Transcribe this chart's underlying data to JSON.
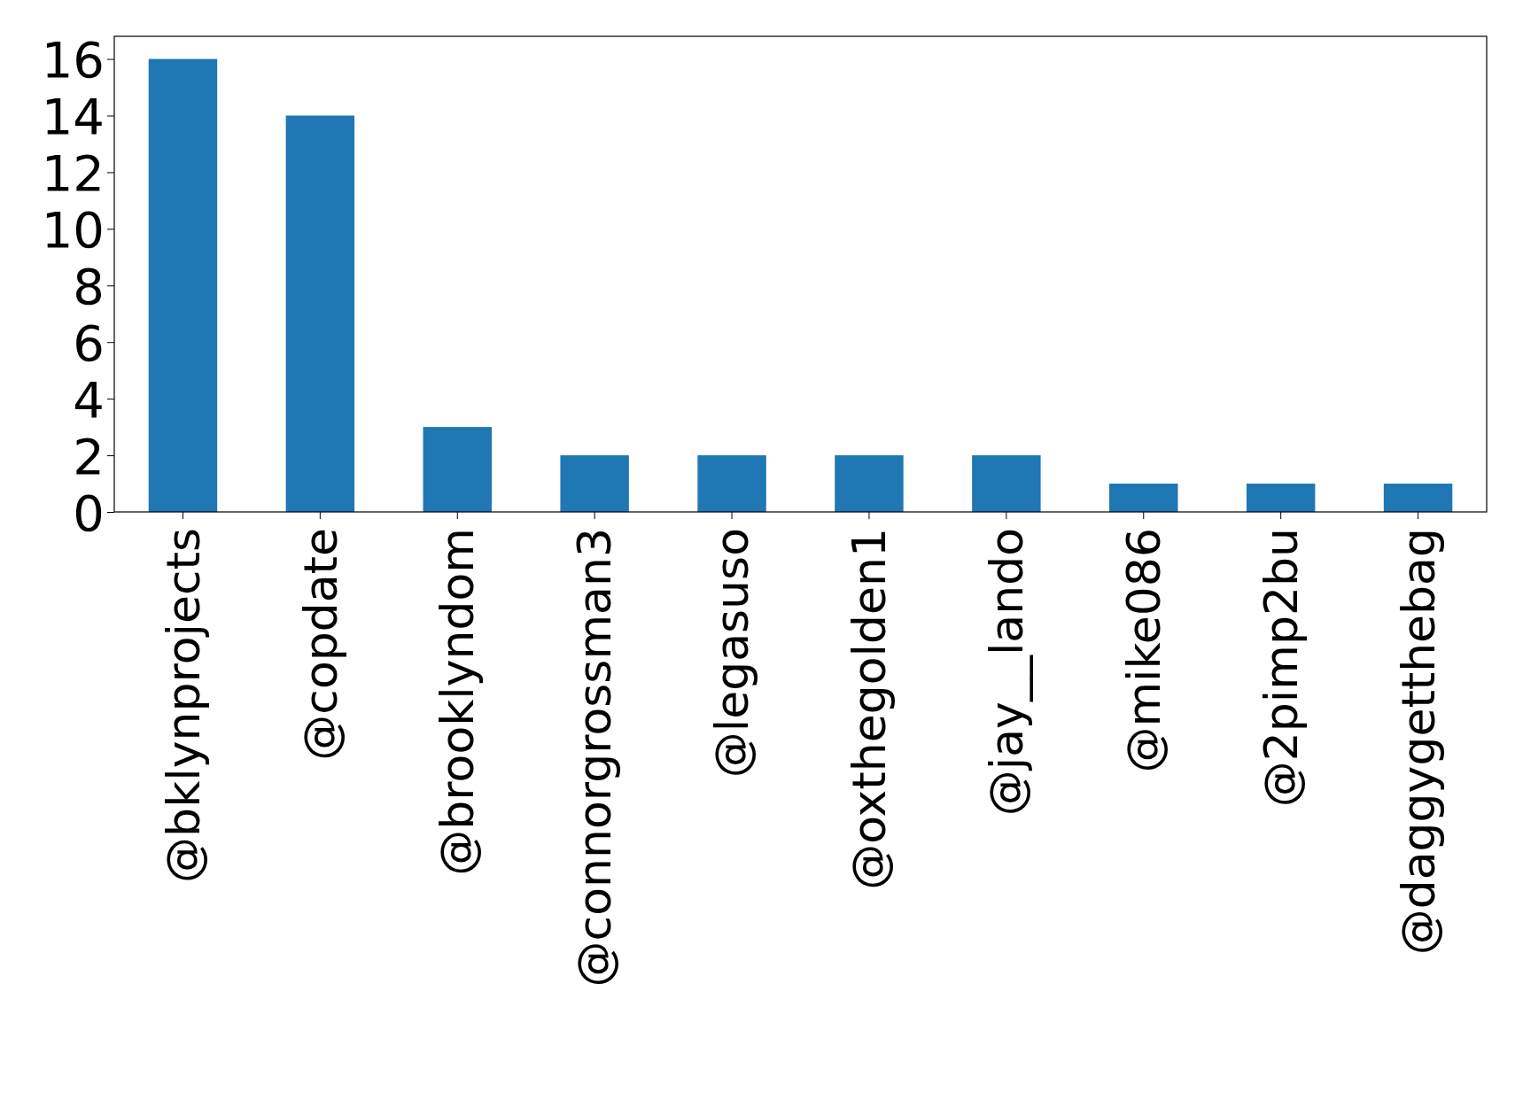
{
  "chart_data": {
    "type": "bar",
    "categories": [
      "@bklynprojects",
      "@copdate",
      "@brooklyndom",
      "@connorgrossman3",
      "@legasuso",
      "@oxthegolden1",
      "@jay__lando",
      "@mike086",
      "@2pimp2bu",
      "@daggygetthebag"
    ],
    "values": [
      16,
      14,
      3,
      2,
      2,
      2,
      2,
      1,
      1,
      1
    ],
    "color": "#1f77b4",
    "ylim": [
      0,
      16.8
    ],
    "yticks": [
      0,
      2,
      4,
      6,
      8,
      10,
      12,
      14,
      16
    ],
    "grid": false
  }
}
